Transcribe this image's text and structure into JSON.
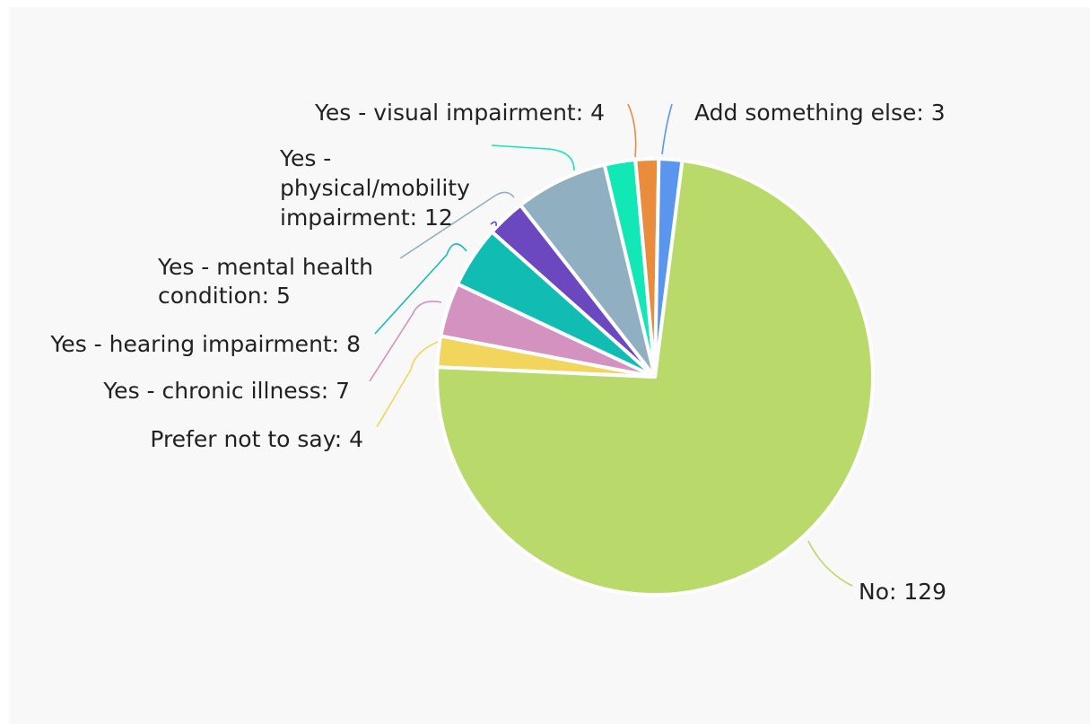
{
  "chart_data": {
    "type": "pie",
    "title": "",
    "legend": "none",
    "slices": [
      {
        "label": "No",
        "value": 129,
        "color": "#b9da6a",
        "text": [
          "No: 129"
        ]
      },
      {
        "label": "Prefer not to say",
        "value": 4,
        "color": "#f2d55c",
        "text": [
          "Prefer not to say: 4"
        ]
      },
      {
        "label": "Yes - chronic illness",
        "value": 7,
        "color": "#d392bf",
        "text": [
          "Yes - chronic illness: 7"
        ]
      },
      {
        "label": "Yes - hearing impairment",
        "value": 8,
        "color": "#11bcb3",
        "text": [
          "Yes - hearing impairment: 8"
        ]
      },
      {
        "label": "Yes - mental health condition",
        "value": 5,
        "color": "#6c48c0",
        "text": [
          "Yes - mental health",
          "condition: 5"
        ]
      },
      {
        "label": "Yes - physical/mobility impairment",
        "value": 12,
        "color": "#90b0c2",
        "text": [
          "Yes -",
          "physical/mobility",
          "impairment: 12"
        ]
      },
      {
        "label": "Yes - visual impairment",
        "value": 4,
        "color": "#12e8b5",
        "text": [
          "Yes - visual impairment: 4"
        ]
      },
      {
        "label": "Add something else",
        "value": 3,
        "color": "#ea8c3e",
        "text": [
          "Add something else: 3"
        ]
      }
    ],
    "extra_slice": {
      "label": "",
      "value": 3,
      "color": "#5a95ee"
    }
  }
}
